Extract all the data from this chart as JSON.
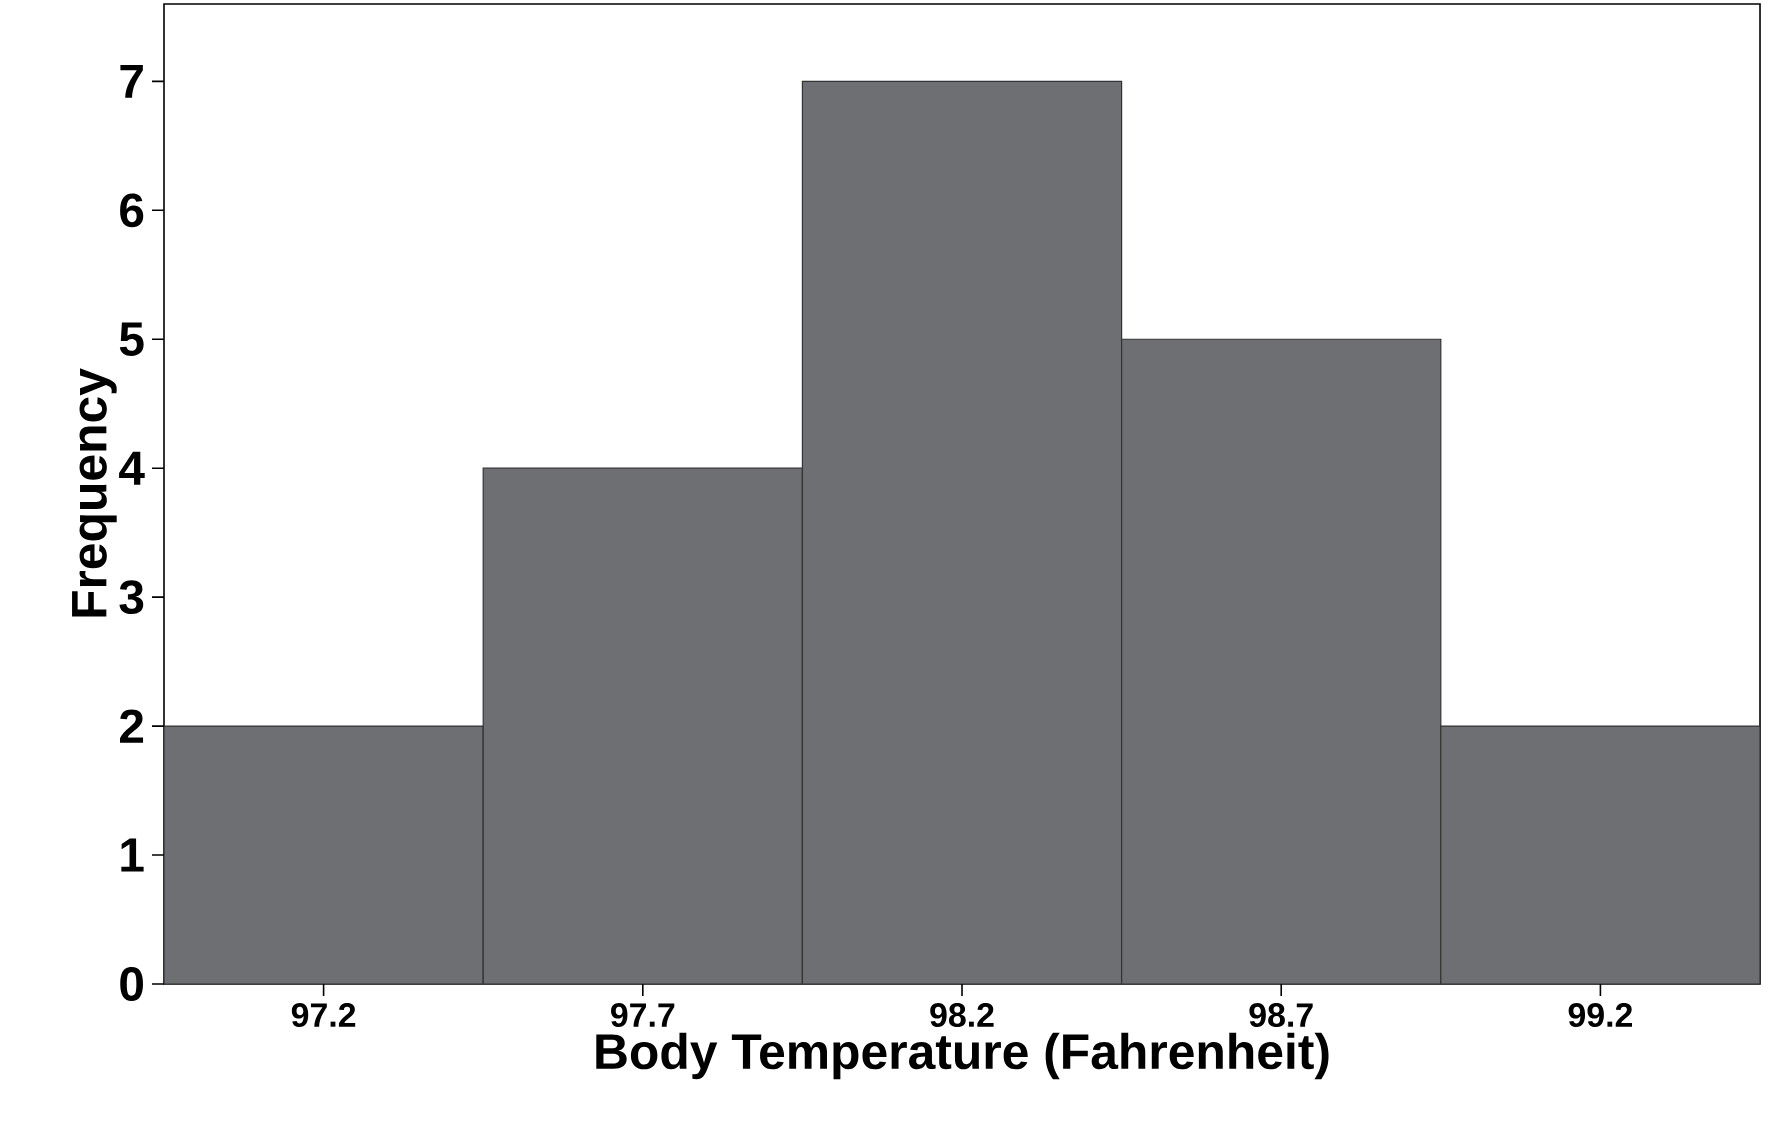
{
  "chart_data": {
    "type": "histogram",
    "xlabel": "Body Temperature (Fahrenheit)",
    "ylabel": "Frequency",
    "bins": [
      96.95,
      97.45,
      97.95,
      98.45,
      98.95,
      99.45
    ],
    "values": [
      2,
      4,
      7,
      5,
      2
    ],
    "color": "#6e6f73",
    "xlim": [
      96.95,
      99.45
    ],
    "ylim": [
      0,
      7.6
    ],
    "xticks": [
      97.2,
      97.7,
      98.2,
      98.7,
      99.2
    ],
    "yticks": [
      0,
      1,
      2,
      3,
      4,
      5,
      6,
      7
    ]
  }
}
